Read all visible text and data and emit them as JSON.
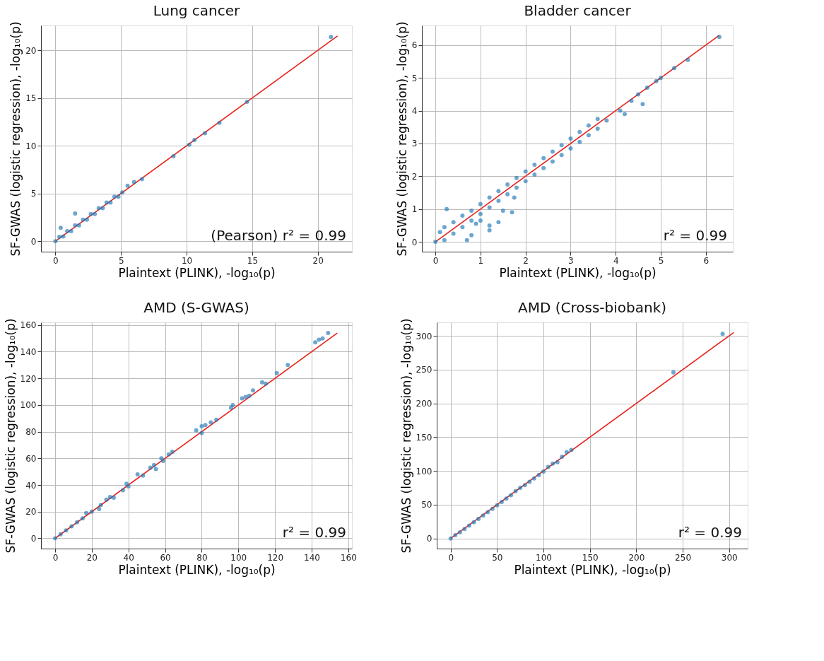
{
  "chart_data": [
    {
      "type": "scatter",
      "title": "Lung cancer",
      "xlabel": "Plaintext (PLINK), -log₁₀(p)",
      "ylabel": "SF-GWAS (logistic regression), -log₁₀(p)",
      "annotations": [
        "(Pearson) r² = 0.99"
      ],
      "xlim": [
        -1.1,
        22.6
      ],
      "ylim": [
        -1.1,
        22.6
      ],
      "xticks": [
        0,
        5,
        10,
        15,
        20
      ],
      "yticks": [
        0,
        5,
        10,
        15,
        20
      ],
      "grid": true,
      "series": [
        {
          "type": "scatter",
          "marker": "circle",
          "color": "#1f77b4",
          "x": [
            0,
            0.3,
            0.6,
            0.9,
            1.2,
            1.5,
            1.8,
            2.1,
            2.4,
            2.7,
            3.0,
            3.3,
            3.6,
            3.9,
            4.2,
            4.5,
            4.8,
            5.1,
            0.4,
            1.5,
            5.5,
            6.0,
            6.6,
            9.0,
            10.2,
            10.6,
            11.4,
            12.5,
            14.6,
            21.0
          ],
          "values": [
            0,
            0.45,
            0.5,
            1.05,
            1.05,
            1.65,
            1.65,
            2.25,
            2.25,
            2.85,
            2.85,
            3.45,
            3.45,
            4.05,
            4.05,
            4.65,
            4.65,
            5.1,
            1.4,
            2.9,
            5.8,
            6.2,
            6.5,
            8.9,
            10.1,
            10.6,
            11.3,
            12.4,
            14.6,
            21.4
          ]
        },
        {
          "type": "line",
          "marker": "none",
          "color": "#e8221c",
          "x": [
            0,
            21.5
          ],
          "values": [
            0,
            21.5
          ]
        }
      ]
    },
    {
      "type": "scatter",
      "title": "Bladder cancer",
      "xlabel": "Plaintext (PLINK), -log₁₀(p)",
      "ylabel": "SF-GWAS (logistic regression), -log₁₀(p)",
      "annotations": [
        "r² = 0.99"
      ],
      "xlim": [
        -0.3,
        6.6
      ],
      "ylim": [
        -0.3,
        6.6
      ],
      "xticks": [
        0,
        1,
        2,
        3,
        4,
        5,
        6
      ],
      "yticks": [
        0,
        1,
        2,
        3,
        4,
        5,
        6
      ],
      "grid": true,
      "series": [
        {
          "type": "scatter",
          "marker": "circle",
          "color": "#1f77b4",
          "x": [
            0,
            0.1,
            0.2,
            0.2,
            0.4,
            0.4,
            0.6,
            0.6,
            0.8,
            0.8,
            1.0,
            1.0,
            1.2,
            1.2,
            1.4,
            1.4,
            1.6,
            1.6,
            1.8,
            1.8,
            2.0,
            2.0,
            2.2,
            2.2,
            2.4,
            2.4,
            2.6,
            2.6,
            2.8,
            2.8,
            3.0,
            3.0,
            3.2,
            3.2,
            3.4,
            3.4,
            3.6,
            3.6,
            3.8,
            0.25,
            0.7,
            0.8,
            0.9,
            1.0,
            1.2,
            1.2,
            1.4,
            1.5,
            1.7,
            1.75,
            4.1,
            4.2,
            4.35,
            4.5,
            4.6,
            4.7,
            4.9,
            5.0,
            5.3,
            5.6,
            6.3
          ],
          "values": [
            0,
            0.3,
            0.05,
            0.45,
            0.25,
            0.6,
            0.45,
            0.8,
            0.65,
            0.95,
            0.85,
            1.15,
            1.05,
            1.35,
            1.25,
            1.55,
            1.45,
            1.75,
            1.65,
            1.95,
            1.85,
            2.15,
            2.05,
            2.35,
            2.25,
            2.55,
            2.45,
            2.75,
            2.65,
            2.95,
            2.85,
            3.15,
            3.05,
            3.35,
            3.25,
            3.55,
            3.45,
            3.75,
            3.7,
            1.0,
            0.05,
            0.2,
            0.55,
            0.65,
            0.35,
            0.5,
            0.6,
            0.95,
            0.9,
            1.35,
            4.0,
            3.9,
            4.3,
            4.5,
            4.2,
            4.7,
            4.9,
            5.0,
            5.3,
            5.55,
            6.25
          ]
        },
        {
          "type": "line",
          "marker": "none",
          "color": "#e8221c",
          "x": [
            0,
            6.3
          ],
          "values": [
            0,
            6.3
          ]
        }
      ]
    },
    {
      "type": "scatter",
      "title": "AMD (S-GWAS)",
      "xlabel": "Plaintext (PLINK), -log₁₀(p)",
      "ylabel": "SF-GWAS (logistic regression), -log₁₀(p)",
      "annotations": [
        "r² = 0.99"
      ],
      "xlim": [
        -7.7,
        162
      ],
      "ylim": [
        -7.7,
        162
      ],
      "xticks": [
        0,
        20,
        40,
        60,
        80,
        100,
        120,
        140,
        160
      ],
      "yticks": [
        0,
        20,
        40,
        60,
        80,
        100,
        120,
        140,
        160
      ],
      "grid": true,
      "series": [
        {
          "type": "scatter",
          "marker": "circle",
          "color": "#1f77b4",
          "x": [
            0,
            3,
            6,
            9,
            12,
            15,
            17,
            20,
            24,
            25,
            28,
            30,
            32,
            37,
            39,
            40,
            45,
            48,
            52,
            54,
            55,
            58,
            59,
            62,
            64,
            77,
            80,
            80,
            82,
            85,
            88,
            96,
            97,
            102,
            104,
            106,
            108,
            113,
            115,
            121,
            127,
            142,
            144,
            146,
            149
          ],
          "values": [
            0,
            3,
            6,
            9,
            12,
            15,
            19,
            20,
            22,
            25,
            29,
            31,
            30.5,
            36,
            41,
            39,
            48,
            47,
            53,
            55,
            52,
            60,
            58,
            63,
            65,
            81,
            79,
            84,
            85,
            87,
            89,
            98,
            100,
            105,
            106,
            107,
            111,
            117,
            116,
            124,
            130,
            147,
            149,
            150,
            154
          ]
        },
        {
          "type": "line",
          "marker": "none",
          "color": "#e8221c",
          "x": [
            0,
            154
          ],
          "values": [
            0,
            154
          ]
        }
      ]
    },
    {
      "type": "scatter",
      "title": "AMD (Cross-biobank)",
      "xlabel": "Plaintext (PLINK), -log₁₀(p)",
      "ylabel": "SF-GWAS (logistic regression), -log₁₀(p)",
      "annotations": [
        "r² = 0.99"
      ],
      "xlim": [
        -15,
        320
      ],
      "ylim": [
        -15,
        320
      ],
      "xticks": [
        0,
        50,
        100,
        150,
        200,
        250,
        300
      ],
      "yticks": [
        0,
        50,
        100,
        150,
        200,
        250,
        300
      ],
      "grid": true,
      "series": [
        {
          "type": "scatter",
          "marker": "circle",
          "color": "#1f77b4",
          "x": [
            0,
            5,
            10,
            15,
            20,
            25,
            30,
            35,
            40,
            45,
            50,
            55,
            60,
            65,
            70,
            75,
            80,
            85,
            90,
            95,
            100,
            105,
            110,
            115,
            120,
            125,
            130,
            240,
            293
          ],
          "values": [
            0,
            5,
            9,
            14,
            19,
            24,
            29,
            34,
            39,
            44,
            49,
            54,
            59,
            64,
            70,
            75,
            79,
            84,
            89,
            94,
            99,
            106,
            111,
            113,
            121,
            128,
            131,
            246,
            303
          ]
        },
        {
          "type": "line",
          "marker": "none",
          "color": "#e8221c",
          "x": [
            0,
            305
          ],
          "values": [
            0,
            305
          ]
        }
      ]
    }
  ]
}
